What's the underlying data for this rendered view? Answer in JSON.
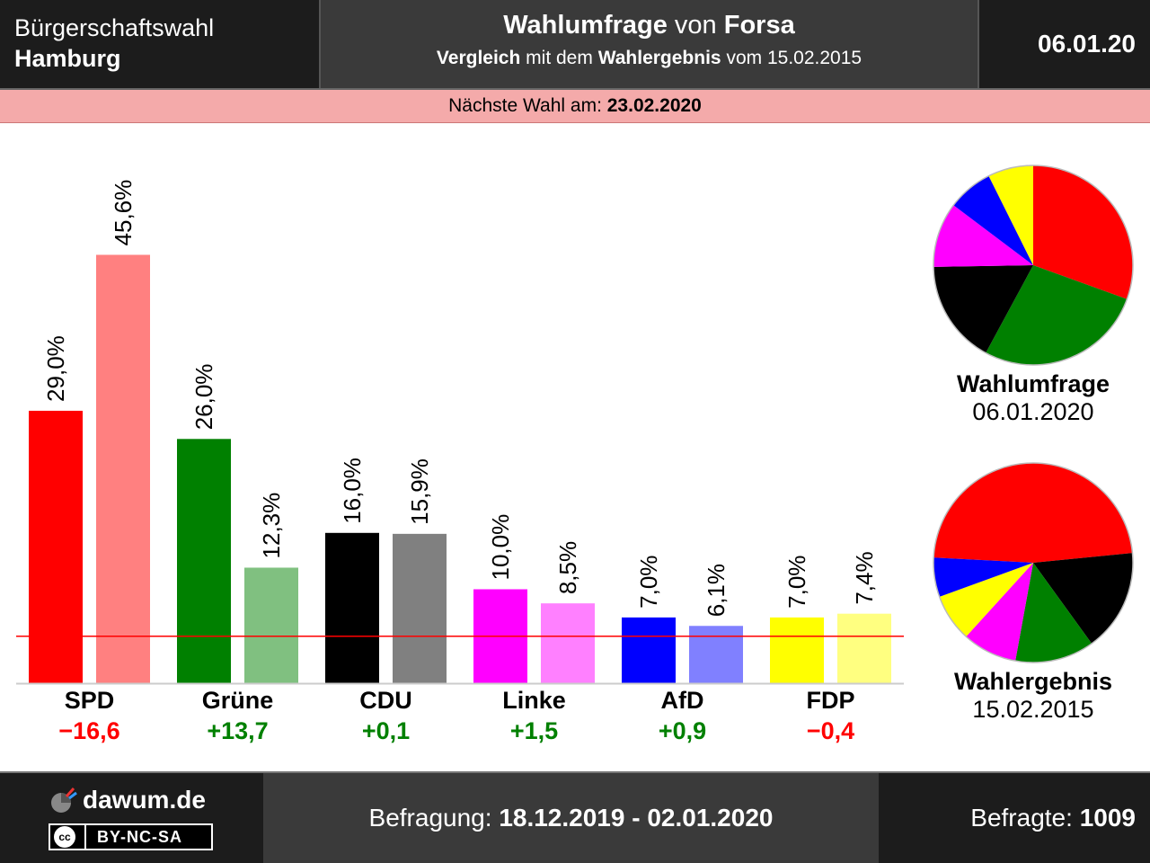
{
  "header": {
    "election_type": "Bürgerschaftswahl",
    "state": "Hamburg",
    "title_bold1": "Wahlumfrage",
    "title_mid": "von",
    "title_bold2": "Forsa",
    "sub_bold1": "Vergleich",
    "sub_mid": "mit dem",
    "sub_bold2": "Wahlergebnis",
    "sub_end": "vom 15.02.2015",
    "date": "06.01.20"
  },
  "next_election": {
    "label": "Nächste Wahl am:",
    "date": "23.02.2020"
  },
  "chart_data": {
    "type": "bar",
    "categories": [
      "SPD",
      "Grüne",
      "CDU",
      "Linke",
      "AfD",
      "FDP"
    ],
    "series": [
      {
        "name": "Wahlumfrage",
        "values": [
          29.0,
          26.0,
          16.0,
          10.0,
          7.0,
          7.0
        ],
        "labels": [
          "29,0%",
          "26,0%",
          "16,0%",
          "10,0%",
          "7,0%",
          "7,0%"
        ],
        "colors": [
          "#ff0000",
          "#008000",
          "#000000",
          "#ff00ff",
          "#0000ff",
          "#ffff00"
        ]
      },
      {
        "name": "Wahlergebnis",
        "values": [
          45.6,
          12.3,
          15.9,
          8.5,
          6.1,
          7.4
        ],
        "labels": [
          "45,6%",
          "12,3%",
          "15,9%",
          "8,5%",
          "6,1%",
          "7,4%"
        ],
        "colors": [
          "#ff8080",
          "#80c080",
          "#808080",
          "#ff80ff",
          "#8080ff",
          "#ffff80"
        ]
      }
    ],
    "diffs": [
      "−16,6",
      "+13,7",
      "+0,1",
      "+1,5",
      "+0,9",
      "−0,4"
    ],
    "diff_colors": [
      "#ff0000",
      "#008000",
      "#008000",
      "#008000",
      "#008000",
      "#ff0000"
    ],
    "threshold": 5,
    "threshold_color": "#ff0000",
    "ylim": [
      0,
      50
    ],
    "pies": [
      {
        "label": "Wahlumfrage",
        "date": "06.01.2020",
        "order": [
          "SPD",
          "Grüne",
          "CDU",
          "Linke",
          "AfD",
          "FDP"
        ],
        "values": [
          29.0,
          26.0,
          16.0,
          10.0,
          7.0,
          7.0
        ],
        "colors": [
          "#ff0000",
          "#008000",
          "#000000",
          "#ff00ff",
          "#0000ff",
          "#ffff00"
        ]
      },
      {
        "label": "Wahlergebnis",
        "date": "15.02.2015",
        "order": [
          "SPD",
          "CDU",
          "Grüne",
          "Linke",
          "FDP",
          "AfD"
        ],
        "values": [
          45.6,
          15.9,
          12.3,
          8.5,
          7.4,
          6.1
        ],
        "colors": [
          "#ff0000",
          "#000000",
          "#008000",
          "#ff00ff",
          "#ffff00",
          "#0000ff"
        ]
      }
    ]
  },
  "footer": {
    "site": "dawum.de",
    "license": "BY-NC-SA",
    "cc": "cc",
    "period_label": "Befragung:",
    "period": "18.12.2019 - 02.01.2020",
    "respondents_label": "Befragte:",
    "respondents": "1009"
  }
}
